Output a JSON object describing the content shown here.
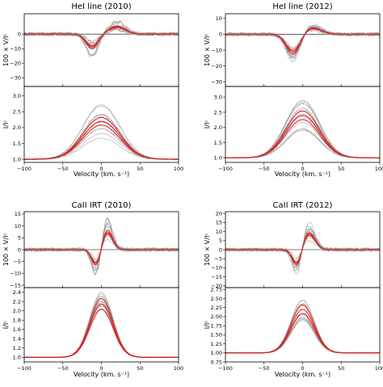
{
  "chart_data": [
    {
      "type": "line",
      "title": "HeI line (2010)",
      "xlabel": "Velocity (km. s⁻¹)",
      "x_ticks": [
        "−100",
        "−50",
        "0",
        "50",
        "100"
      ],
      "xlim": [
        -100,
        100
      ],
      "top": {
        "ylabel": "100 × V/Iᶜ",
        "ylim": [
          -36,
          14
        ],
        "y_ticks": [
          {
            "v": 0,
            "t": "0"
          },
          {
            "v": -10,
            "t": "−10"
          },
          {
            "v": -20,
            "t": "−20"
          },
          {
            "v": -30,
            "t": "−30"
          }
        ],
        "profile": {
          "kind": "stokes_v",
          "base": 0,
          "a1": -9,
          "c1": -12,
          "w1": 8,
          "a2": 5,
          "c2": 20,
          "w2": 11
        }
      },
      "bottom": {
        "ylabel": "I/Iᶜ",
        "ylim": [
          0.9,
          3.3
        ],
        "y_ticks": [
          {
            "v": 1.0,
            "t": "1.0"
          },
          {
            "v": 1.5,
            "t": "1.5"
          },
          {
            "v": 2.0,
            "t": "2.0"
          },
          {
            "v": 2.5,
            "t": "2.5"
          },
          {
            "v": 3.0,
            "t": "3.0"
          }
        ],
        "profile": {
          "kind": "gauss",
          "base": 1.0,
          "amp": 1.2,
          "c": 0,
          "w": 24
        },
        "spread": 0.9
      },
      "series": [
        {
          "color": "#d62728"
        },
        {
          "color": "#9a9a9a"
        }
      ]
    },
    {
      "type": "line",
      "title": "HeI line (2012)",
      "xlabel": "Velocity (km. s⁻¹)",
      "x_ticks": [
        "−100",
        "−50",
        "0",
        "50",
        "100"
      ],
      "xlim": [
        -100,
        100
      ],
      "top": {
        "ylabel": "100 × V/Iᶜ",
        "ylim": [
          -33,
          13
        ],
        "y_ticks": [
          {
            "v": 10,
            "t": "10"
          },
          {
            "v": 0,
            "t": "0"
          },
          {
            "v": -10,
            "t": "−10"
          },
          {
            "v": -20,
            "t": "−20"
          },
          {
            "v": -30,
            "t": "−30"
          }
        ],
        "profile": {
          "kind": "stokes_v",
          "base": 0,
          "a1": -12,
          "c1": -12,
          "w1": 9,
          "a2": 4,
          "c2": 12,
          "w2": 12
        }
      },
      "bottom": {
        "ylabel": "I/Iᶜ",
        "ylim": [
          0.85,
          3.35
        ],
        "y_ticks": [
          {
            "v": 1.0,
            "t": "1.0"
          },
          {
            "v": 1.5,
            "t": "1.5"
          },
          {
            "v": 2.0,
            "t": "2.0"
          },
          {
            "v": 2.5,
            "t": "2.5"
          },
          {
            "v": 3.0,
            "t": "3.0"
          }
        ],
        "profile": {
          "kind": "gauss",
          "base": 1.0,
          "amp": 1.4,
          "c": 0,
          "w": 22
        },
        "spread": 0.8
      },
      "series": [
        {
          "color": "#d62728"
        },
        {
          "color": "#9a9a9a"
        }
      ]
    },
    {
      "type": "line",
      "title": "CaII IRT (2010)",
      "xlabel": "Velocity (km. s⁻¹)",
      "x_ticks": [
        "−100",
        "−50",
        "0",
        "50",
        "100"
      ],
      "xlim": [
        -100,
        100
      ],
      "top": {
        "ylabel": "100 × V/Iᶜ",
        "ylim": [
          -16,
          16
        ],
        "y_ticks": [
          {
            "v": 15,
            "t": "15"
          },
          {
            "v": 10,
            "t": "10"
          },
          {
            "v": 5,
            "t": "5"
          },
          {
            "v": 0,
            "t": "0"
          },
          {
            "v": -5,
            "t": "−5"
          },
          {
            "v": -10,
            "t": "−10"
          },
          {
            "v": -15,
            "t": "−15"
          }
        ],
        "profile": {
          "kind": "stokes_v",
          "base": 0,
          "a1": -7,
          "c1": -6,
          "w1": 6,
          "a2": 8,
          "c2": 7,
          "w2": 7
        }
      },
      "bottom": {
        "ylabel": "I/Iᶜ",
        "ylim": [
          0.9,
          2.5
        ],
        "y_ticks": [
          {
            "v": 1.0,
            "t": "1.0"
          },
          {
            "v": 1.2,
            "t": "1.2"
          },
          {
            "v": 1.4,
            "t": "1.4"
          },
          {
            "v": 1.6,
            "t": "1.6"
          },
          {
            "v": 1.8,
            "t": "1.8"
          },
          {
            "v": 2.0,
            "t": "2.0"
          },
          {
            "v": 2.2,
            "t": "2.2"
          },
          {
            "v": 2.4,
            "t": "2.4"
          }
        ],
        "profile": {
          "kind": "gauss",
          "base": 1.0,
          "amp": 1.15,
          "c": 0,
          "w": 15
        },
        "spread": 0.45
      },
      "series": [
        {
          "color": "#d62728"
        },
        {
          "color": "#9a9a9a"
        }
      ]
    },
    {
      "type": "line",
      "title": "CaII IRT (2012)",
      "xlabel": "Velocity (km. s⁻¹)",
      "x_ticks": [
        "−100",
        "−50",
        "0",
        "50",
        "100"
      ],
      "xlim": [
        -100,
        100
      ],
      "top": {
        "ylabel": "100 × V/Iᶜ",
        "ylim": [
          -21,
          21
        ],
        "y_ticks": [
          {
            "v": 20,
            "t": "20"
          },
          {
            "v": 15,
            "t": "15"
          },
          {
            "v": 10,
            "t": "10"
          },
          {
            "v": 5,
            "t": "5"
          },
          {
            "v": 0,
            "t": "0"
          },
          {
            "v": -5,
            "t": "−5"
          },
          {
            "v": -10,
            "t": "−10"
          },
          {
            "v": -15,
            "t": "−15"
          },
          {
            "v": -20,
            "t": "−20"
          }
        ],
        "profile": {
          "kind": "stokes_v",
          "base": 0,
          "a1": -9,
          "c1": -7,
          "w1": 6,
          "a2": 9,
          "c2": 8,
          "w2": 8
        }
      },
      "bottom": {
        "ylabel": "I/Iᶜ",
        "ylim": [
          0.75,
          2.8
        ],
        "y_ticks": [
          {
            "v": 0.75,
            "t": "0.75"
          },
          {
            "v": 1.0,
            "t": "1.00"
          },
          {
            "v": 1.25,
            "t": "1.25"
          },
          {
            "v": 1.5,
            "t": "1.50"
          },
          {
            "v": 1.75,
            "t": "1.75"
          },
          {
            "v": 2.0,
            "t": "2.00"
          },
          {
            "v": 2.25,
            "t": "2.25"
          },
          {
            "v": 2.5,
            "t": "2.50"
          },
          {
            "v": 2.75,
            "t": "2.75"
          }
        ],
        "profile": {
          "kind": "gauss",
          "base": 1.0,
          "amp": 1.2,
          "c": 0,
          "w": 15
        },
        "spread": 0.55
      },
      "series": [
        {
          "color": "#d62728"
        },
        {
          "color": "#9a9a9a"
        }
      ]
    }
  ]
}
